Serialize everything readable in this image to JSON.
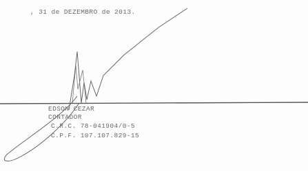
{
  "document": {
    "date_line": ", 31 de DEZEMBRO  de 2013.",
    "signer": {
      "name": "EDSON CEZAR",
      "role": "CONTADOR",
      "crc": "C.R.C. 78-041904/0-5",
      "cpf": "C.P.F. 107.107.829-15"
    }
  }
}
